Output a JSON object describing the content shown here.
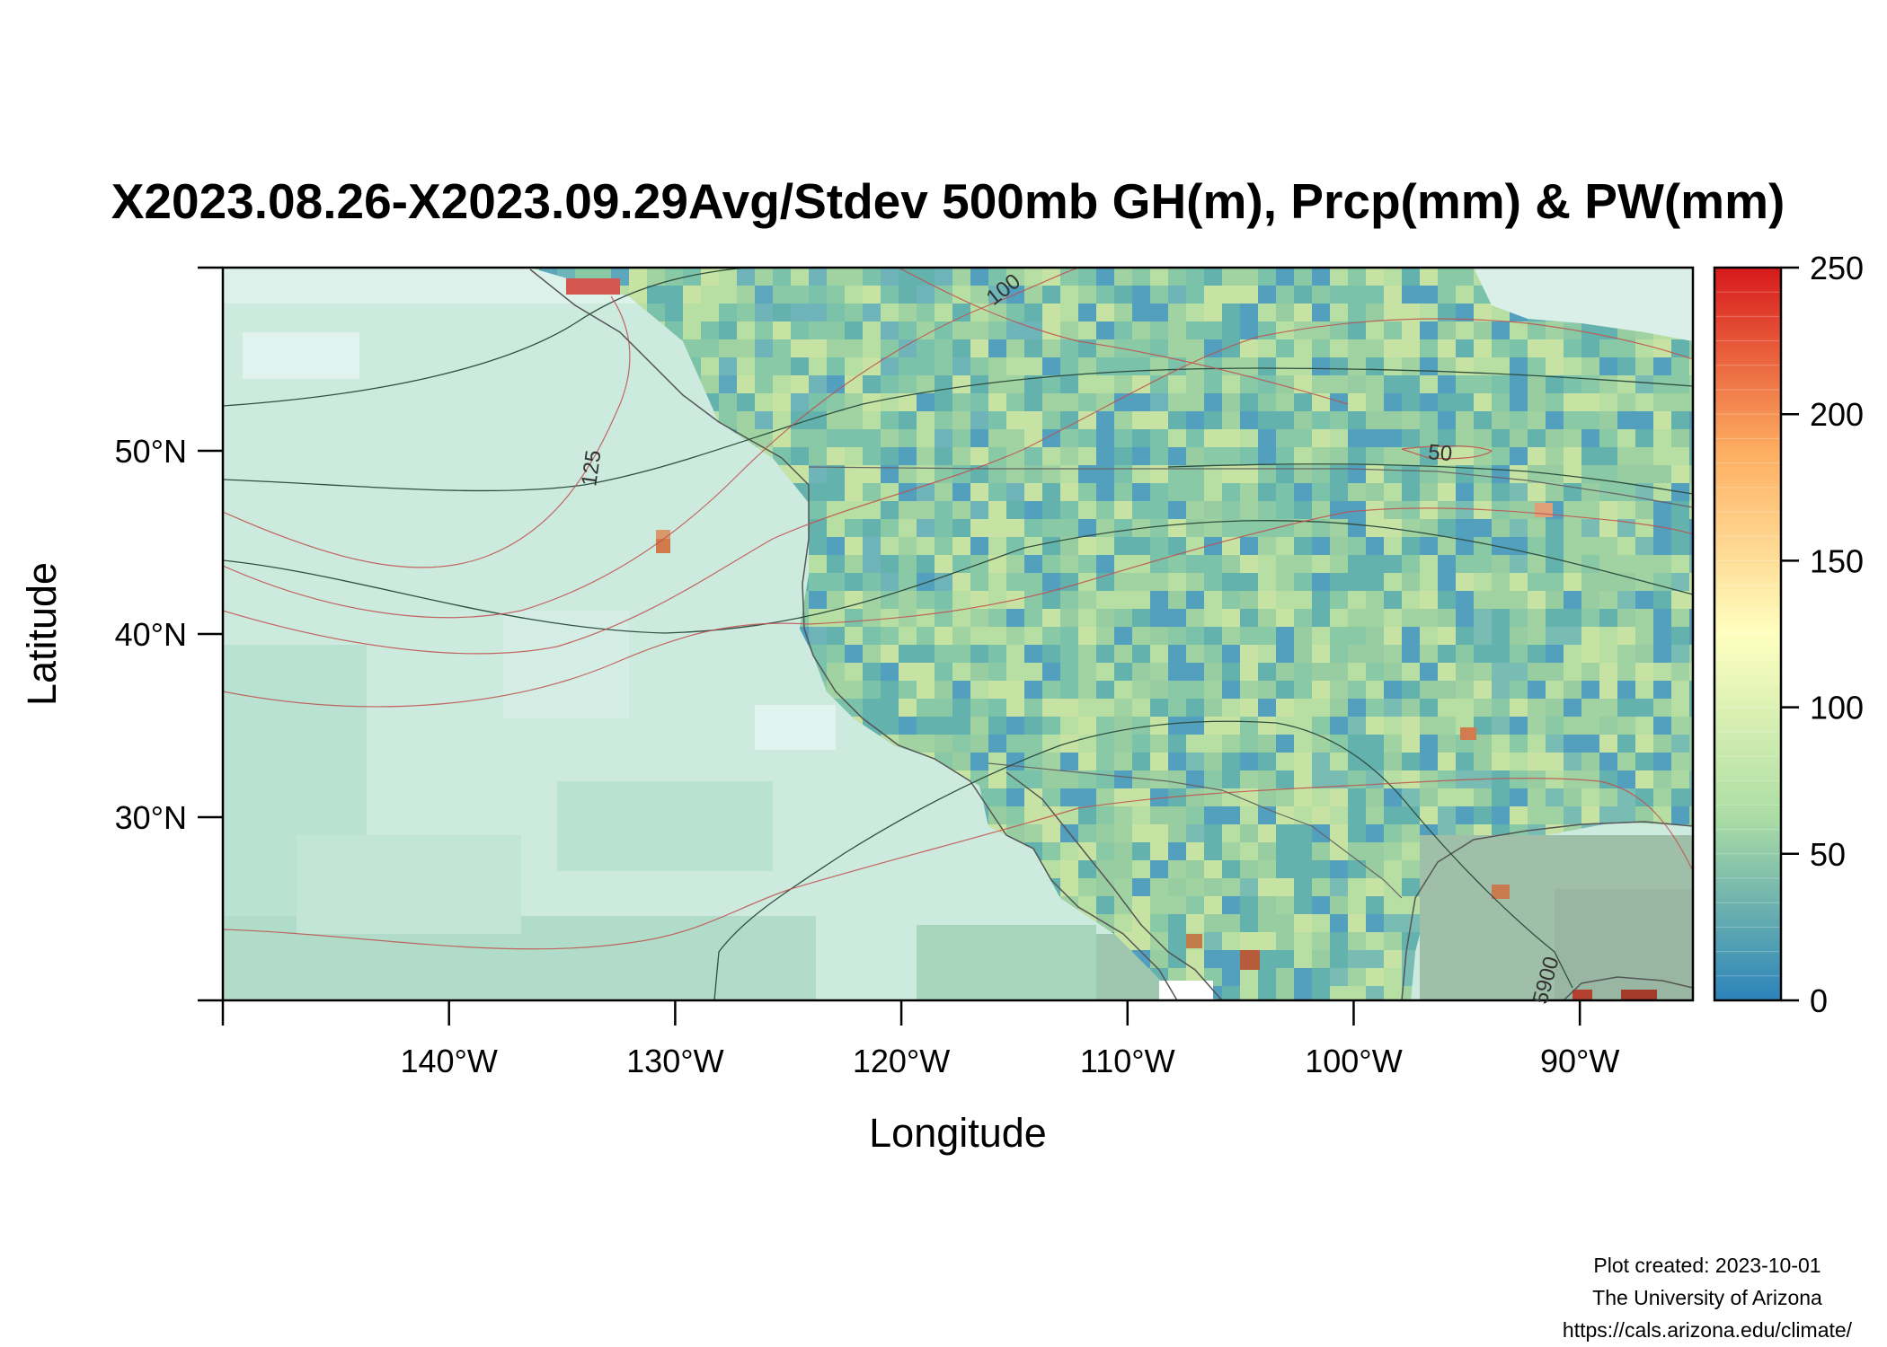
{
  "title": "X2023.08.26-X2023.09.29Avg/Stdev 500mb GH(m), Prcp(mm) & PW(mm)",
  "axes": {
    "xlabel": "Longitude",
    "ylabel": "Latitude",
    "x_ticks": [
      "140°W",
      "130°W",
      "120°W",
      "110°W",
      "100°W",
      "90°W"
    ],
    "x_tick_values": [
      -140,
      -130,
      -120,
      -110,
      -100,
      -90
    ],
    "y_ticks": [
      "30°N",
      "40°N",
      "50°N"
    ],
    "y_tick_values": [
      30,
      40,
      50
    ],
    "xlim": [
      -150,
      -85
    ],
    "ylim": [
      20,
      60
    ]
  },
  "colorbar": {
    "ticks": [
      "0",
      "50",
      "100",
      "150",
      "200",
      "250"
    ],
    "tick_values": [
      0,
      50,
      100,
      150,
      200,
      250
    ],
    "range": [
      0,
      250
    ],
    "colors": [
      "#2b83ba",
      "#abdda4",
      "#ffffbf",
      "#fdae61",
      "#d7191c"
    ]
  },
  "contour_labels": [
    {
      "text": "100",
      "lon": -115.3,
      "lat": 58.5,
      "rotate": -38,
      "color": "#333333"
    },
    {
      "text": "125",
      "lon": -133.4,
      "lat": 49.0,
      "rotate": -82,
      "color": "#333333"
    },
    {
      "text": "50",
      "lon": -96.2,
      "lat": 49.5,
      "rotate": 5,
      "color": "#333333"
    },
    {
      "text": "5900",
      "lon": -91.2,
      "lat": 21.0,
      "rotate": -75,
      "color": "#333333"
    }
  ],
  "chart_data": {
    "type": "heatmap",
    "domain": "western North America",
    "variables": [
      "500mb GH (m)",
      "Precipitation (mm)",
      "Precipitable water (mm)"
    ],
    "contours_gh_m": [
      5900
    ],
    "contours_prcp_mm": [
      50,
      100,
      125
    ],
    "xlim": [
      -150,
      -85
    ],
    "ylim": [
      20,
      60
    ]
  },
  "credits": {
    "line1": "Plot created: 2023-10-01",
    "line2": "The University of Arizona",
    "line3": "https://cals.arizona.edu/climate/"
  }
}
